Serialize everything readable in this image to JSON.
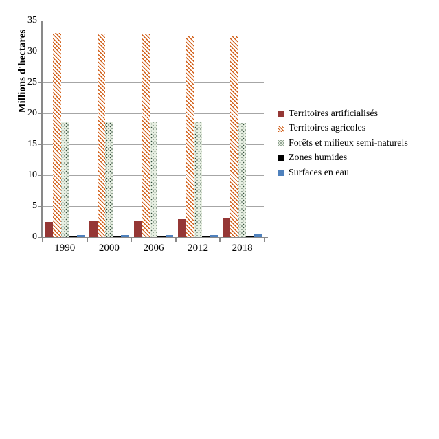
{
  "chart_data": {
    "type": "bar",
    "title": "",
    "ylabel": "Millions d'hectares",
    "xlabel": "",
    "ylim": [
      0,
      35
    ],
    "yticks": [
      0,
      5,
      10,
      15,
      20,
      25,
      30,
      35
    ],
    "grid": true,
    "legend_position": "right",
    "categories": [
      "1990",
      "2000",
      "2006",
      "2012",
      "2018"
    ],
    "series": [
      {
        "name": "Territoires artificialisés",
        "values": [
          2.4,
          2.6,
          2.7,
          2.9,
          3.1
        ],
        "color": "#953735",
        "pattern": "solid-red"
      },
      {
        "name": "Territoires agricoles",
        "values": [
          33.0,
          32.9,
          32.8,
          32.6,
          32.4
        ],
        "color": "#d2601a",
        "pattern": "hatch"
      },
      {
        "name": "Forêts et milieux semi-naturels",
        "values": [
          18.7,
          18.7,
          18.6,
          18.6,
          18.5
        ],
        "color": "#2e4b38",
        "pattern": "dots",
        "fill_bg": "#e7efe2"
      },
      {
        "name": "Zones humides",
        "values": [
          0.1,
          0.1,
          0.1,
          0.1,
          0.1
        ],
        "color": "#000000",
        "pattern": "solid-black"
      },
      {
        "name": "Surfaces en eau",
        "values": [
          0.3,
          0.3,
          0.3,
          0.3,
          0.4
        ],
        "color": "#4f81bd",
        "pattern": "solid-blue"
      }
    ],
    "colors": {
      "gridline": "#a6a6a6",
      "axis": "#898989",
      "text": "#000000",
      "background": "#ffffff"
    }
  }
}
